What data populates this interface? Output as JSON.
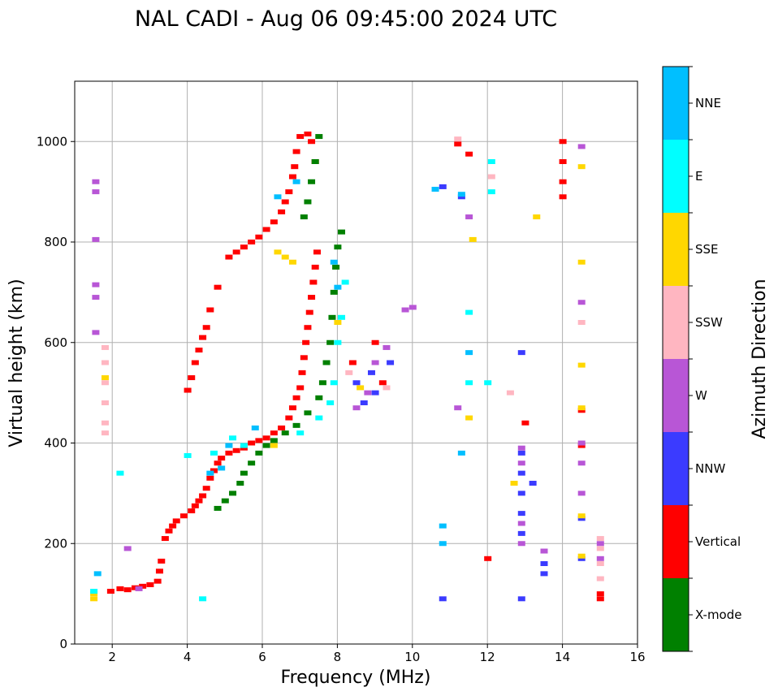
{
  "chart_data": {
    "type": "scatter",
    "title": "NAL CADI - Aug 06 09:45:00 2024 UTC",
    "xlabel": "Frequency (MHz)",
    "ylabel": "Virtual height (km)",
    "xlim": [
      1,
      16
    ],
    "ylim": [
      0,
      1120
    ],
    "xticks": [
      2,
      4,
      6,
      8,
      10,
      12,
      14,
      16
    ],
    "yticks": [
      0,
      200,
      400,
      600,
      800,
      1000
    ],
    "grid": true,
    "colorbar": {
      "label": "Azimuth Direction",
      "position": "right",
      "categories": [
        {
          "name": "X-mode",
          "color": "#008000"
        },
        {
          "name": "Vertical",
          "color": "#ff0000"
        },
        {
          "name": "NNW",
          "color": "#3b3bff"
        },
        {
          "name": "W",
          "color": "#b856d6"
        },
        {
          "name": "SSW",
          "color": "#ffb6c1"
        },
        {
          "name": "SSE",
          "color": "#ffd700"
        },
        {
          "name": "E",
          "color": "#00ffff"
        },
        {
          "name": "NNE",
          "color": "#00bfff"
        }
      ]
    },
    "series": [
      {
        "name": "Vertical",
        "color": "#ff0000",
        "points": [
          [
            1.95,
            105
          ],
          [
            2.2,
            110
          ],
          [
            2.4,
            108
          ],
          [
            2.6,
            112
          ],
          [
            2.8,
            115
          ],
          [
            3.0,
            118
          ],
          [
            3.2,
            125
          ],
          [
            3.25,
            145
          ],
          [
            3.3,
            165
          ],
          [
            3.4,
            210
          ],
          [
            3.5,
            225
          ],
          [
            3.6,
            235
          ],
          [
            3.7,
            245
          ],
          [
            3.9,
            255
          ],
          [
            4.1,
            265
          ],
          [
            4.2,
            275
          ],
          [
            4.3,
            285
          ],
          [
            4.4,
            295
          ],
          [
            4.5,
            310
          ],
          [
            4.6,
            330
          ],
          [
            4.7,
            345
          ],
          [
            4.8,
            360
          ],
          [
            4.9,
            370
          ],
          [
            5.1,
            380
          ],
          [
            5.3,
            385
          ],
          [
            5.5,
            390
          ],
          [
            5.7,
            400
          ],
          [
            5.9,
            405
          ],
          [
            6.1,
            410
          ],
          [
            6.3,
            420
          ],
          [
            6.5,
            430
          ],
          [
            6.7,
            450
          ],
          [
            6.8,
            470
          ],
          [
            6.9,
            490
          ],
          [
            7.0,
            510
          ],
          [
            7.05,
            540
          ],
          [
            7.1,
            570
          ],
          [
            7.15,
            600
          ],
          [
            7.2,
            630
          ],
          [
            7.25,
            660
          ],
          [
            7.3,
            690
          ],
          [
            7.35,
            720
          ],
          [
            7.4,
            750
          ],
          [
            7.45,
            780
          ],
          [
            4.0,
            505
          ],
          [
            4.1,
            530
          ],
          [
            4.2,
            560
          ],
          [
            4.3,
            585
          ],
          [
            4.4,
            610
          ],
          [
            4.5,
            630
          ],
          [
            4.6,
            665
          ],
          [
            4.8,
            710
          ],
          [
            5.1,
            770
          ],
          [
            5.3,
            780
          ],
          [
            5.5,
            790
          ],
          [
            5.7,
            800
          ],
          [
            5.9,
            810
          ],
          [
            6.1,
            825
          ],
          [
            6.3,
            840
          ],
          [
            6.5,
            860
          ],
          [
            6.6,
            880
          ],
          [
            6.7,
            900
          ],
          [
            6.8,
            930
          ],
          [
            6.85,
            950
          ],
          [
            6.9,
            980
          ],
          [
            7.0,
            1010
          ],
          [
            7.2,
            1015
          ],
          [
            7.3,
            1000
          ],
          [
            7.4,
            960
          ],
          [
            8.4,
            560
          ],
          [
            9.0,
            600
          ],
          [
            9.2,
            520
          ],
          [
            11.2,
            995
          ],
          [
            11.5,
            975
          ],
          [
            14.0,
            1000
          ],
          [
            14.0,
            960
          ],
          [
            14.0,
            920
          ],
          [
            14.0,
            890
          ],
          [
            14.5,
            465
          ],
          [
            14.5,
            395
          ],
          [
            15.0,
            100
          ],
          [
            15.0,
            90
          ],
          [
            13.0,
            440
          ],
          [
            12.0,
            170
          ]
        ]
      },
      {
        "name": "X-mode",
        "color": "#008000",
        "points": [
          [
            4.8,
            270
          ],
          [
            5.0,
            285
          ],
          [
            5.2,
            300
          ],
          [
            5.4,
            320
          ],
          [
            5.5,
            340
          ],
          [
            5.7,
            360
          ],
          [
            5.9,
            380
          ],
          [
            6.1,
            395
          ],
          [
            6.3,
            405
          ],
          [
            6.6,
            420
          ],
          [
            6.9,
            435
          ],
          [
            7.2,
            460
          ],
          [
            7.5,
            490
          ],
          [
            7.6,
            520
          ],
          [
            7.7,
            560
          ],
          [
            7.8,
            600
          ],
          [
            7.85,
            650
          ],
          [
            7.9,
            700
          ],
          [
            7.95,
            750
          ],
          [
            8.0,
            790
          ],
          [
            8.1,
            820
          ],
          [
            7.5,
            1010
          ],
          [
            7.4,
            960
          ],
          [
            7.3,
            920
          ],
          [
            7.2,
            880
          ],
          [
            7.1,
            850
          ]
        ]
      },
      {
        "name": "NNW",
        "color": "#3b3bff",
        "points": [
          [
            8.5,
            520
          ],
          [
            8.7,
            480
          ],
          [
            8.9,
            540
          ],
          [
            9.0,
            500
          ],
          [
            9.4,
            560
          ],
          [
            10.8,
            910
          ],
          [
            11.3,
            890
          ],
          [
            12.9,
            580
          ],
          [
            12.9,
            380
          ],
          [
            12.9,
            340
          ],
          [
            12.9,
            300
          ],
          [
            12.9,
            260
          ],
          [
            12.9,
            220
          ],
          [
            13.2,
            320
          ],
          [
            13.5,
            160
          ],
          [
            13.5,
            140
          ],
          [
            14.5,
            250
          ],
          [
            14.5,
            170
          ],
          [
            10.8,
            90
          ],
          [
            12.9,
            90
          ]
        ]
      },
      {
        "name": "W",
        "color": "#b856d6",
        "points": [
          [
            1.55,
            920
          ],
          [
            1.55,
            900
          ],
          [
            1.55,
            805
          ],
          [
            1.55,
            715
          ],
          [
            1.55,
            690
          ],
          [
            1.55,
            620
          ],
          [
            2.4,
            190
          ],
          [
            2.7,
            110
          ],
          [
            8.5,
            470
          ],
          [
            8.8,
            500
          ],
          [
            9.0,
            560
          ],
          [
            9.3,
            590
          ],
          [
            9.8,
            665
          ],
          [
            10.0,
            670
          ],
          [
            12.9,
            390
          ],
          [
            12.9,
            360
          ],
          [
            12.9,
            240
          ],
          [
            12.9,
            200
          ],
          [
            13.5,
            185
          ],
          [
            14.5,
            990
          ],
          [
            14.5,
            680
          ],
          [
            14.5,
            400
          ],
          [
            14.5,
            360
          ],
          [
            14.5,
            300
          ],
          [
            15.0,
            200
          ],
          [
            15.0,
            170
          ],
          [
            11.5,
            850
          ],
          [
            11.2,
            470
          ]
        ]
      },
      {
        "name": "SSW",
        "color": "#ffb6c1",
        "points": [
          [
            1.8,
            590
          ],
          [
            1.8,
            560
          ],
          [
            1.8,
            520
          ],
          [
            1.8,
            480
          ],
          [
            1.8,
            440
          ],
          [
            1.8,
            420
          ],
          [
            8.3,
            540
          ],
          [
            9.3,
            510
          ],
          [
            12.6,
            500
          ],
          [
            15.0,
            210
          ],
          [
            15.0,
            190
          ],
          [
            15.0,
            160
          ],
          [
            15.0,
            130
          ],
          [
            11.2,
            1005
          ],
          [
            12.1,
            930
          ],
          [
            14.5,
            640
          ]
        ]
      },
      {
        "name": "SSE",
        "color": "#ffd700",
        "points": [
          [
            1.5,
            100
          ],
          [
            1.5,
            90
          ],
          [
            1.8,
            530
          ],
          [
            6.4,
            780
          ],
          [
            6.6,
            770
          ],
          [
            6.8,
            760
          ],
          [
            8.0,
            640
          ],
          [
            8.6,
            510
          ],
          [
            12.7,
            320
          ],
          [
            13.3,
            850
          ],
          [
            14.5,
            950
          ],
          [
            14.5,
            760
          ],
          [
            14.5,
            555
          ],
          [
            14.5,
            470
          ],
          [
            14.5,
            255
          ],
          [
            14.5,
            175
          ],
          [
            11.6,
            805
          ],
          [
            11.5,
            450
          ],
          [
            6.3,
            395
          ]
        ]
      },
      {
        "name": "E",
        "color": "#00ffff",
        "points": [
          [
            1.5,
            105
          ],
          [
            2.2,
            340
          ],
          [
            4.0,
            375
          ],
          [
            4.7,
            380
          ],
          [
            5.2,
            410
          ],
          [
            5.5,
            395
          ],
          [
            7.0,
            420
          ],
          [
            7.5,
            450
          ],
          [
            7.8,
            480
          ],
          [
            7.9,
            520
          ],
          [
            8.0,
            600
          ],
          [
            8.1,
            650
          ],
          [
            8.2,
            720
          ],
          [
            12.1,
            960
          ],
          [
            12.1,
            900
          ],
          [
            12.0,
            520
          ],
          [
            11.5,
            660
          ],
          [
            11.5,
            520
          ],
          [
            4.4,
            90
          ]
        ]
      },
      {
        "name": "NNE",
        "color": "#00bfff",
        "points": [
          [
            1.6,
            140
          ],
          [
            4.6,
            340
          ],
          [
            4.9,
            350
          ],
          [
            5.1,
            395
          ],
          [
            5.8,
            430
          ],
          [
            6.4,
            890
          ],
          [
            6.9,
            920
          ],
          [
            7.9,
            760
          ],
          [
            8.0,
            710
          ],
          [
            10.6,
            905
          ],
          [
            11.3,
            895
          ],
          [
            11.3,
            380
          ],
          [
            11.5,
            580
          ],
          [
            10.8,
            200
          ],
          [
            10.8,
            235
          ]
        ]
      }
    ]
  }
}
